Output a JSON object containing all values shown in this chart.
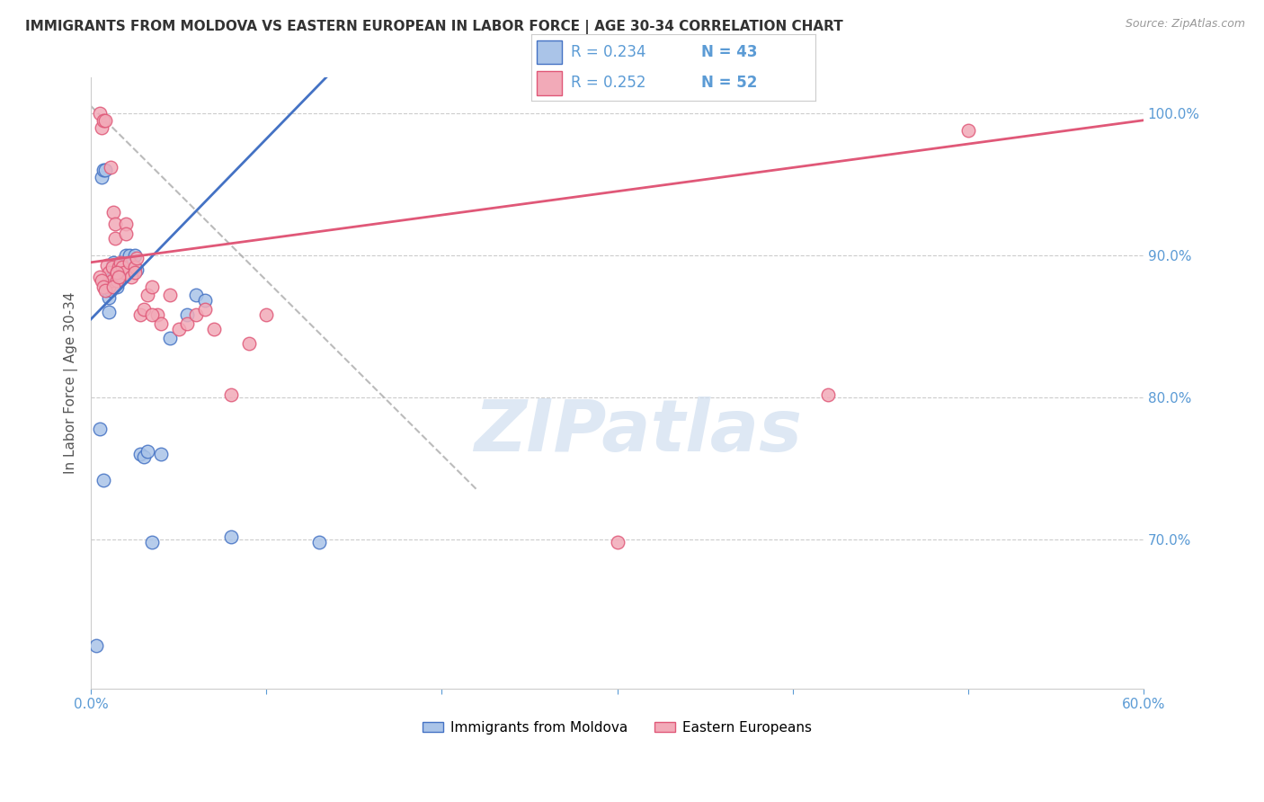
{
  "title": "IMMIGRANTS FROM MOLDOVA VS EASTERN EUROPEAN IN LABOR FORCE | AGE 30-34 CORRELATION CHART",
  "source": "Source: ZipAtlas.com",
  "ylabel_left": "In Labor Force | Age 30-34",
  "legend_label1": "Immigrants from Moldova",
  "legend_label2": "Eastern Europeans",
  "r1": 0.234,
  "n1": 43,
  "r2": 0.252,
  "n2": 52,
  "color1": "#aac4e8",
  "color2": "#f2aab8",
  "line_color1": "#4472c4",
  "line_color2": "#e05878",
  "axis_tick_color": "#5b9bd5",
  "xlim": [
    0.0,
    0.6
  ],
  "ylim": [
    0.595,
    1.025
  ],
  "xtick_positions": [
    0.0,
    0.1,
    0.2,
    0.3,
    0.4,
    0.5,
    0.6
  ],
  "xtick_labels": [
    "0.0%",
    "",
    "",
    "",
    "",
    "",
    "60.0%"
  ],
  "yticks_right": [
    0.7,
    0.8,
    0.9,
    1.0
  ],
  "ytick_labels_right": [
    "70.0%",
    "80.0%",
    "90.0%",
    "100.0%"
  ],
  "blue_scatter_x": [
    0.003,
    0.006,
    0.007,
    0.008,
    0.009,
    0.009,
    0.01,
    0.01,
    0.011,
    0.011,
    0.012,
    0.012,
    0.013,
    0.013,
    0.014,
    0.014,
    0.015,
    0.015,
    0.016,
    0.016,
    0.017,
    0.018,
    0.019,
    0.02,
    0.02,
    0.021,
    0.022,
    0.023,
    0.025,
    0.026,
    0.028,
    0.03,
    0.032,
    0.035,
    0.04,
    0.045,
    0.055,
    0.06,
    0.065,
    0.08,
    0.13,
    0.005,
    0.007
  ],
  "blue_scatter_y": [
    0.625,
    0.955,
    0.96,
    0.96,
    0.88,
    0.875,
    0.87,
    0.86,
    0.875,
    0.88,
    0.88,
    0.885,
    0.89,
    0.895,
    0.88,
    0.885,
    0.88,
    0.878,
    0.885,
    0.882,
    0.89,
    0.895,
    0.892,
    0.895,
    0.9,
    0.895,
    0.9,
    0.895,
    0.9,
    0.89,
    0.76,
    0.758,
    0.762,
    0.698,
    0.76,
    0.842,
    0.858,
    0.872,
    0.868,
    0.702,
    0.698,
    0.778,
    0.742
  ],
  "pink_scatter_x": [
    0.005,
    0.006,
    0.007,
    0.008,
    0.009,
    0.01,
    0.01,
    0.011,
    0.012,
    0.012,
    0.013,
    0.014,
    0.014,
    0.015,
    0.015,
    0.016,
    0.017,
    0.018,
    0.019,
    0.02,
    0.022,
    0.023,
    0.025,
    0.026,
    0.028,
    0.03,
    0.032,
    0.035,
    0.038,
    0.04,
    0.045,
    0.05,
    0.055,
    0.06,
    0.065,
    0.07,
    0.08,
    0.09,
    0.1,
    0.3,
    0.42,
    0.5,
    0.005,
    0.006,
    0.007,
    0.008,
    0.013,
    0.015,
    0.016,
    0.02,
    0.025,
    0.035
  ],
  "pink_scatter_y": [
    1.0,
    0.99,
    0.995,
    0.995,
    0.893,
    0.888,
    0.878,
    0.962,
    0.892,
    0.882,
    0.93,
    0.922,
    0.912,
    0.888,
    0.882,
    0.892,
    0.895,
    0.892,
    0.888,
    0.922,
    0.895,
    0.885,
    0.892,
    0.898,
    0.858,
    0.862,
    0.872,
    0.878,
    0.858,
    0.852,
    0.872,
    0.848,
    0.852,
    0.858,
    0.862,
    0.848,
    0.802,
    0.838,
    0.858,
    0.698,
    0.802,
    0.988,
    0.885,
    0.882,
    0.878,
    0.875,
    0.878,
    0.888,
    0.885,
    0.915,
    0.888,
    0.858
  ],
  "ref_line_x": [
    0.0,
    0.22
  ],
  "ref_line_y": [
    1.005,
    0.735
  ],
  "watermark_text": "ZIPatlas",
  "watermark_color": "#d0dff0",
  "background_color": "#ffffff",
  "grid_color": "#cccccc",
  "spine_color": "#cccccc"
}
